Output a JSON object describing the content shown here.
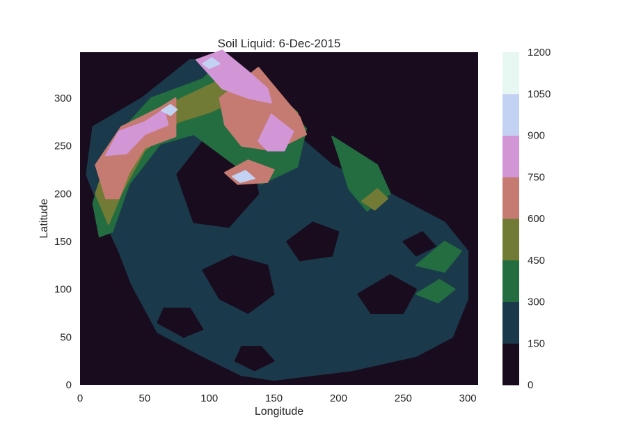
{
  "chart_data": {
    "type": "heatmap",
    "subtype": "filled-contour",
    "title": "Soil Liquid: 6-Dec-2015",
    "xlabel": "Longitude",
    "ylabel": "Latitude",
    "xlim": [
      0,
      308
    ],
    "ylim": [
      0,
      348
    ],
    "x_ticks": [
      0,
      50,
      100,
      150,
      200,
      250,
      300
    ],
    "y_ticks": [
      0,
      50,
      100,
      150,
      200,
      250,
      300
    ],
    "colorbar": {
      "levels": [
        0,
        150,
        300,
        450,
        600,
        750,
        900,
        1050,
        1200
      ],
      "colors": [
        "#190c1e",
        "#1a3a4b",
        "#236d41",
        "#727b35",
        "#c57b72",
        "#d296d6",
        "#c3d1f3",
        "#e7f7f1"
      ]
    },
    "regions": [
      {
        "level": 1,
        "points": [
          [
            150,
            5
          ],
          [
            210,
            15
          ],
          [
            260,
            30
          ],
          [
            288,
            50
          ],
          [
            300,
            90
          ],
          [
            300,
            140
          ],
          [
            282,
            170
          ],
          [
            240,
            200
          ],
          [
            195,
            230
          ],
          [
            165,
            265
          ],
          [
            150,
            310
          ],
          [
            115,
            340
          ],
          [
            85,
            340
          ],
          [
            48,
            300
          ],
          [
            10,
            270
          ],
          [
            5,
            220
          ],
          [
            18,
            175
          ],
          [
            30,
            140
          ],
          [
            40,
            105
          ],
          [
            60,
            55
          ],
          [
            95,
            30
          ],
          [
            125,
            10
          ]
        ]
      },
      {
        "level": 0,
        "points": [
          [
            75,
            220
          ],
          [
            105,
            272
          ],
          [
            130,
            250
          ],
          [
            138,
            200
          ],
          [
            115,
            165
          ],
          [
            88,
            170
          ]
        ]
      },
      {
        "level": 0,
        "points": [
          [
            95,
            120
          ],
          [
            108,
            90
          ],
          [
            130,
            75
          ],
          [
            150,
            95
          ],
          [
            145,
            125
          ],
          [
            118,
            135
          ]
        ]
      },
      {
        "level": 0,
        "points": [
          [
            60,
            65
          ],
          [
            80,
            50
          ],
          [
            95,
            58
          ],
          [
            85,
            80
          ],
          [
            65,
            80
          ]
        ]
      },
      {
        "level": 0,
        "points": [
          [
            160,
            150
          ],
          [
            180,
            170
          ],
          [
            200,
            160
          ],
          [
            195,
            135
          ],
          [
            170,
            130
          ]
        ]
      },
      {
        "level": 0,
        "points": [
          [
            215,
            95
          ],
          [
            240,
            115
          ],
          [
            260,
            100
          ],
          [
            250,
            75
          ],
          [
            225,
            75
          ]
        ]
      },
      {
        "level": 0,
        "points": [
          [
            120,
            25
          ],
          [
            135,
            15
          ],
          [
            150,
            25
          ],
          [
            140,
            40
          ],
          [
            125,
            40
          ]
        ]
      },
      {
        "level": 0,
        "points": [
          [
            250,
            150
          ],
          [
            265,
            160
          ],
          [
            275,
            145
          ],
          [
            260,
            135
          ]
        ]
      },
      {
        "level": 2,
        "points": [
          [
            10,
            190
          ],
          [
            25,
            255
          ],
          [
            55,
            300
          ],
          [
            95,
            320
          ],
          [
            110,
            340
          ],
          [
            140,
            320
          ],
          [
            175,
            268
          ],
          [
            168,
            228
          ],
          [
            140,
            210
          ],
          [
            112,
            238
          ],
          [
            88,
            262
          ],
          [
            62,
            252
          ],
          [
            38,
            210
          ],
          [
            25,
            160
          ],
          [
            15,
            155
          ]
        ]
      },
      {
        "level": 2,
        "points": [
          [
            195,
            260
          ],
          [
            230,
            230
          ],
          [
            240,
            200
          ],
          [
            222,
            182
          ],
          [
            208,
            205
          ],
          [
            200,
            240
          ]
        ]
      },
      {
        "level": 2,
        "points": [
          [
            260,
            125
          ],
          [
            282,
            150
          ],
          [
            295,
            140
          ],
          [
            282,
            118
          ]
        ]
      },
      {
        "level": 2,
        "points": [
          [
            260,
            95
          ],
          [
            278,
            110
          ],
          [
            290,
            100
          ],
          [
            277,
            86
          ]
        ]
      },
      {
        "level": 3,
        "points": [
          [
            12,
            200
          ],
          [
            22,
            240
          ],
          [
            48,
            280
          ],
          [
            82,
            302
          ],
          [
            110,
            320
          ],
          [
            125,
            300
          ],
          [
            100,
            285
          ],
          [
            76,
            275
          ],
          [
            50,
            245
          ],
          [
            32,
            200
          ],
          [
            22,
            168
          ]
        ]
      },
      {
        "level": 3,
        "points": [
          [
            138,
            280
          ],
          [
            148,
            310
          ],
          [
            168,
            285
          ],
          [
            175,
            262
          ],
          [
            158,
            255
          ],
          [
            145,
            265
          ]
        ]
      },
      {
        "level": 3,
        "points": [
          [
            218,
            192
          ],
          [
            230,
            205
          ],
          [
            238,
            195
          ],
          [
            228,
            183
          ]
        ]
      },
      {
        "level": 4,
        "points": [
          [
            12,
            230
          ],
          [
            32,
            270
          ],
          [
            62,
            290
          ],
          [
            74,
            300
          ],
          [
            74,
            260
          ],
          [
            50,
            248
          ],
          [
            38,
            222
          ],
          [
            30,
            195
          ],
          [
            20,
            195
          ]
        ]
      },
      {
        "level": 4,
        "points": [
          [
            108,
            300
          ],
          [
            138,
            332
          ],
          [
            170,
            280
          ],
          [
            175,
            262
          ],
          [
            150,
            245
          ],
          [
            125,
            250
          ],
          [
            112,
            272
          ]
        ]
      },
      {
        "level": 4,
        "points": [
          [
            112,
            222
          ],
          [
            130,
            235
          ],
          [
            150,
            225
          ],
          [
            145,
            212
          ],
          [
            122,
            210
          ]
        ]
      },
      {
        "level": 5,
        "points": [
          [
            20,
            240
          ],
          [
            30,
            265
          ],
          [
            50,
            275
          ],
          [
            65,
            288
          ],
          [
            68,
            272
          ],
          [
            50,
            262
          ],
          [
            36,
            242
          ]
        ]
      },
      {
        "level": 5,
        "points": [
          [
            90,
            340
          ],
          [
            110,
            350
          ],
          [
            130,
            328
          ],
          [
            145,
            310
          ],
          [
            148,
            295
          ],
          [
            130,
            300
          ],
          [
            110,
            310
          ]
        ]
      },
      {
        "level": 5,
        "points": [
          [
            138,
            255
          ],
          [
            148,
            283
          ],
          [
            165,
            265
          ],
          [
            158,
            245
          ],
          [
            145,
            245
          ]
        ]
      },
      {
        "level": 6,
        "points": [
          [
            63,
            287
          ],
          [
            70,
            293
          ],
          [
            75,
            288
          ],
          [
            70,
            282
          ]
        ]
      },
      {
        "level": 6,
        "points": [
          [
            118,
            218
          ],
          [
            128,
            224
          ],
          [
            135,
            216
          ],
          [
            124,
            212
          ]
        ]
      },
      {
        "level": 6,
        "points": [
          [
            95,
            336
          ],
          [
            102,
            342
          ],
          [
            108,
            336
          ],
          [
            100,
            331
          ]
        ]
      }
    ]
  }
}
